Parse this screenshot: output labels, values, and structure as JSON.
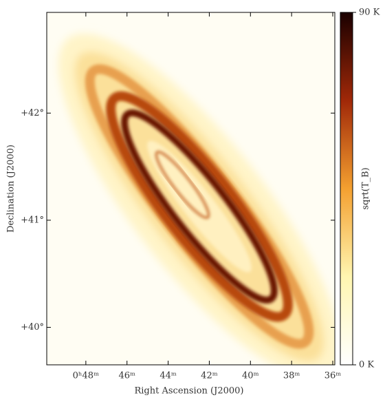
{
  "chart_data": {
    "type": "image",
    "xlabel": "Right Ascension (J2000)",
    "ylabel": "Declination (J2000)",
    "xlim": [
      49.9,
      35.9
    ],
    "xticks": [
      {
        "value": 48,
        "label": "0ʰ48ᵐ"
      },
      {
        "value": 46,
        "label": "46ᵐ"
      },
      {
        "value": 44,
        "label": "44ᵐ"
      },
      {
        "value": 42,
        "label": "42ᵐ"
      },
      {
        "value": 40,
        "label": "40ᵐ"
      },
      {
        "value": 38,
        "label": "38ᵐ"
      },
      {
        "value": 36,
        "label": "36ᵐ"
      }
    ],
    "ylim": [
      39.65,
      42.94
    ],
    "yticks": [
      {
        "value": 40,
        "label": "+40°"
      },
      {
        "value": 41,
        "label": "+41°"
      },
      {
        "value": 42,
        "label": "+42°"
      }
    ],
    "colorbar": {
      "label": "sqrt(T_B)",
      "lim": [
        0,
        90
      ],
      "ticks": [
        {
          "value": 0,
          "label": "0 K"
        },
        {
          "value": 90,
          "label": "90 K"
        }
      ]
    }
  }
}
